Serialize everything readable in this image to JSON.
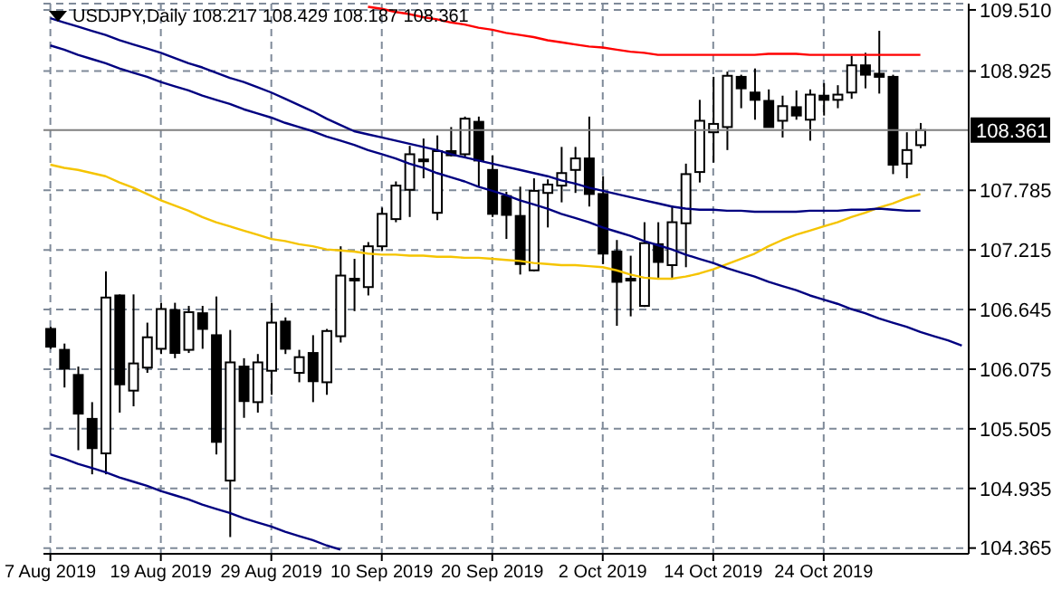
{
  "chart_data": {
    "type": "candlestick",
    "title": "USDJPY,Daily 108.217 108.429 108.187 108.361",
    "color": "#000000",
    "categories": [
      "7 Aug 2019",
      null,
      null,
      null,
      null,
      null,
      null,
      null,
      "19 Aug 2019",
      null,
      null,
      null,
      null,
      null,
      null,
      null,
      "29 Aug 2019",
      null,
      null,
      null,
      null,
      null,
      null,
      null,
      "10 Sep 2019",
      null,
      null,
      null,
      null,
      null,
      null,
      null,
      "20 Sep 2019",
      null,
      null,
      null,
      null,
      null,
      null,
      null,
      "2 Oct 2019",
      null,
      null,
      null,
      null,
      null,
      null,
      null,
      "14 Oct 2019",
      null,
      null,
      null,
      null,
      null,
      null,
      null,
      "24 Oct 2019",
      null,
      null,
      null,
      null,
      null,
      null,
      null,
      null,
      null,
      null
    ],
    "ohlc": [
      [
        106.46,
        106.48,
        106.27,
        106.29
      ],
      [
        106.26,
        106.32,
        105.9,
        106.08
      ],
      [
        106.02,
        106.1,
        105.3,
        105.65
      ],
      [
        105.6,
        105.76,
        105.07,
        105.32
      ],
      [
        105.27,
        107.01,
        105.07,
        106.76
      ],
      [
        106.78,
        106.79,
        105.66,
        105.93
      ],
      [
        105.87,
        106.79,
        105.72,
        106.13
      ],
      [
        106.09,
        106.52,
        106.04,
        106.38
      ],
      [
        106.27,
        106.71,
        106.22,
        106.65
      ],
      [
        106.64,
        106.71,
        106.18,
        106.23
      ],
      [
        106.26,
        106.68,
        106.23,
        106.62
      ],
      [
        106.61,
        106.68,
        106.27,
        106.46
      ],
      [
        106.4,
        106.77,
        105.26,
        105.38
      ],
      [
        105.01,
        106.45,
        104.47,
        106.14
      ],
      [
        106.1,
        106.18,
        105.61,
        105.77
      ],
      [
        105.76,
        106.22,
        105.66,
        106.14
      ],
      [
        106.06,
        106.71,
        105.83,
        106.52
      ],
      [
        106.53,
        106.57,
        106.22,
        106.27
      ],
      [
        106.04,
        106.26,
        105.95,
        106.19
      ],
      [
        106.23,
        106.4,
        105.76,
        105.96
      ],
      [
        105.95,
        106.46,
        105.83,
        106.44
      ],
      [
        106.39,
        107.25,
        106.33,
        106.97
      ],
      [
        106.93,
        107.13,
        106.63,
        106.94
      ],
      [
        106.86,
        107.29,
        106.78,
        107.25
      ],
      [
        107.25,
        107.62,
        107.21,
        107.56
      ],
      [
        107.51,
        107.87,
        107.48,
        107.83
      ],
      [
        107.79,
        108.21,
        107.53,
        108.13
      ],
      [
        108.07,
        108.28,
        107.9,
        108.08
      ],
      [
        107.57,
        108.31,
        107.5,
        108.16
      ],
      [
        108.16,
        108.39,
        108.11,
        108.12
      ],
      [
        108.13,
        108.49,
        108.1,
        108.47
      ],
      [
        108.44,
        108.49,
        107.82,
        108.07
      ],
      [
        107.98,
        108.12,
        107.53,
        107.56
      ],
      [
        107.73,
        107.77,
        107.32,
        107.55
      ],
      [
        107.54,
        107.82,
        106.98,
        107.08
      ],
      [
        107.02,
        107.9,
        107.01,
        107.78
      ],
      [
        107.76,
        107.89,
        107.43,
        107.84
      ],
      [
        107.83,
        108.2,
        107.67,
        107.95
      ],
      [
        107.98,
        108.2,
        107.76,
        108.09
      ],
      [
        108.09,
        108.49,
        107.63,
        107.75
      ],
      [
        107.75,
        107.92,
        107.08,
        107.18
      ],
      [
        107.2,
        107.31,
        106.49,
        106.91
      ],
      [
        106.93,
        107.16,
        106.58,
        106.94
      ],
      [
        106.68,
        107.48,
        106.67,
        107.28
      ],
      [
        107.27,
        107.48,
        106.94,
        107.1
      ],
      [
        107.07,
        107.64,
        106.94,
        107.48
      ],
      [
        107.47,
        108.04,
        107.05,
        107.94
      ],
      [
        107.96,
        108.65,
        107.86,
        108.45
      ],
      [
        108.34,
        108.87,
        108.05,
        108.42
      ],
      [
        108.39,
        108.92,
        108.17,
        108.88
      ],
      [
        108.87,
        108.89,
        108.57,
        108.76
      ],
      [
        108.72,
        108.95,
        108.46,
        108.65
      ],
      [
        108.64,
        108.75,
        108.39,
        108.39
      ],
      [
        108.45,
        108.69,
        108.29,
        108.59
      ],
      [
        108.58,
        108.74,
        108.46,
        108.5
      ],
      [
        108.46,
        108.75,
        108.26,
        108.7
      ],
      [
        108.69,
        108.81,
        108.5,
        108.65
      ],
      [
        108.65,
        108.79,
        108.57,
        108.7
      ],
      [
        108.72,
        109.07,
        108.66,
        108.98
      ],
      [
        108.98,
        109.1,
        108.76,
        108.89
      ],
      [
        108.9,
        109.31,
        108.71,
        108.87
      ],
      [
        108.87,
        108.89,
        107.94,
        108.03
      ],
      [
        108.04,
        108.34,
        107.9,
        108.17
      ],
      [
        108.217,
        108.429,
        108.187,
        108.361
      ],
      null,
      null,
      null
    ],
    "series": [
      {
        "type": "line",
        "color": "#ff0000",
        "values": [
          null,
          null,
          null,
          null,
          null,
          null,
          null,
          null,
          null,
          null,
          null,
          null,
          null,
          null,
          null,
          null,
          null,
          null,
          null,
          null,
          null,
          null,
          null,
          109.54,
          109.52,
          109.49,
          109.47,
          109.44,
          109.42,
          109.39,
          109.37,
          109.34,
          109.32,
          109.29,
          109.27,
          109.25,
          109.22,
          109.2,
          109.18,
          109.16,
          109.15,
          109.13,
          109.11,
          109.1,
          109.08,
          109.08,
          109.08,
          109.08,
          109.08,
          109.08,
          109.08,
          109.08,
          109.09,
          109.09,
          109.09,
          109.08,
          109.08,
          109.08,
          109.08,
          109.08,
          109.08,
          109.08,
          109.08,
          109.08,
          null,
          null,
          null
        ]
      },
      {
        "type": "line",
        "color": "#f5c400",
        "values": [
          108.03,
          108.0,
          107.98,
          107.95,
          107.92,
          107.86,
          107.81,
          107.75,
          107.69,
          107.64,
          107.59,
          107.53,
          107.48,
          107.44,
          107.4,
          107.36,
          107.32,
          107.3,
          107.27,
          107.25,
          107.22,
          107.21,
          107.2,
          107.18,
          107.17,
          107.17,
          107.16,
          107.16,
          107.15,
          107.15,
          107.14,
          107.14,
          107.13,
          107.12,
          107.11,
          107.09,
          107.08,
          107.07,
          107.07,
          107.06,
          107.05,
          107.02,
          106.98,
          106.95,
          106.94,
          106.94,
          106.96,
          106.99,
          107.03,
          107.08,
          107.13,
          107.18,
          107.25,
          107.31,
          107.36,
          107.4,
          107.44,
          107.48,
          107.53,
          107.57,
          107.62,
          107.66,
          107.71,
          107.75,
          null,
          null,
          null
        ]
      },
      {
        "type": "line",
        "color": "#000080",
        "values": [
          109.43,
          109.39,
          109.35,
          109.31,
          109.27,
          109.22,
          109.18,
          109.14,
          109.1,
          109.05,
          109.0,
          108.96,
          108.91,
          108.86,
          108.82,
          108.77,
          108.72,
          108.66,
          108.6,
          108.54,
          108.47,
          108.41,
          108.35,
          108.32,
          108.29,
          108.26,
          108.23,
          108.2,
          108.17,
          108.13,
          108.1,
          108.07,
          108.04,
          108.01,
          107.98,
          107.95,
          107.92,
          107.88,
          107.85,
          107.81,
          107.78,
          107.75,
          107.72,
          107.69,
          107.66,
          107.63,
          107.61,
          107.6,
          107.6,
          107.59,
          107.59,
          107.58,
          107.58,
          107.58,
          107.58,
          107.59,
          107.59,
          107.59,
          107.6,
          107.6,
          107.61,
          107.6,
          107.59,
          107.59,
          null,
          null,
          null
        ]
      },
      {
        "type": "line",
        "color": "#000080",
        "values": [
          109.17,
          109.13,
          109.08,
          109.04,
          109.0,
          108.95,
          108.91,
          108.87,
          108.82,
          108.78,
          108.74,
          108.69,
          108.65,
          108.61,
          108.56,
          108.52,
          108.48,
          108.43,
          108.39,
          108.35,
          108.3,
          108.26,
          108.22,
          108.17,
          108.13,
          108.09,
          108.04,
          108.0,
          107.95,
          107.91,
          107.87,
          107.82,
          107.78,
          107.74,
          107.69,
          107.65,
          107.61,
          107.56,
          107.52,
          107.48,
          107.43,
          107.39,
          107.35,
          107.3,
          107.26,
          107.22,
          107.17,
          107.13,
          107.09,
          107.04,
          107.0,
          106.96,
          106.91,
          106.87,
          106.83,
          106.78,
          106.74,
          106.7,
          106.65,
          106.61,
          106.56,
          106.52,
          106.48,
          106.43,
          106.39,
          106.35,
          106.3
        ]
      },
      {
        "type": "line",
        "color": "#000080",
        "values": [
          105.26,
          105.22,
          105.17,
          105.13,
          105.09,
          105.04,
          105.0,
          104.96,
          104.91,
          104.87,
          104.83,
          104.78,
          104.74,
          104.7,
          104.65,
          104.61,
          104.57,
          104.52,
          104.48,
          104.44,
          104.39,
          104.35,
          null,
          null,
          null,
          null,
          null,
          null,
          null,
          null,
          null,
          null,
          null,
          null,
          null,
          null,
          null,
          null,
          null,
          null,
          null,
          null,
          null,
          null,
          null,
          null,
          null,
          null,
          null,
          null,
          null,
          null,
          null,
          null,
          null,
          null,
          null,
          null,
          null,
          null,
          null,
          null,
          null,
          null,
          null,
          null,
          null
        ]
      }
    ],
    "ylim": [
      104.31,
      109.57
    ],
    "yticks": [
      {
        "value": 109.51,
        "label": "109.510"
      },
      108.925,
      107.785,
      107.215,
      106.645,
      106.075,
      105.505,
      104.935,
      104.365
    ],
    "ref_lines": [
      {
        "axis": "y",
        "value": 108.361,
        "label": "108.361",
        "color": "#808080"
      }
    ],
    "grid": true,
    "marker": "none",
    "line_style": "solid"
  }
}
